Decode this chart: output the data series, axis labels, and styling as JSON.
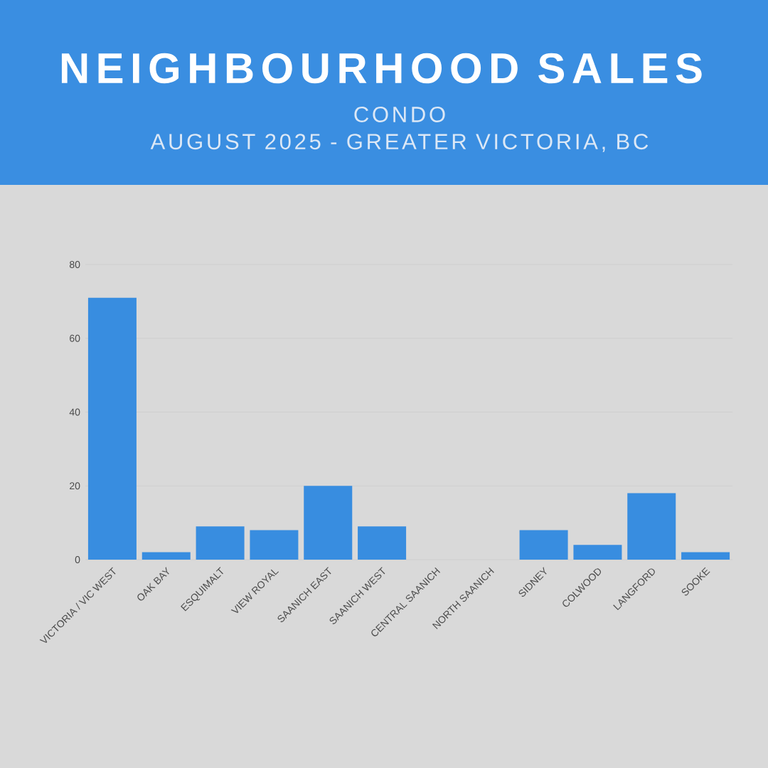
{
  "chart_data": {
    "type": "bar",
    "title": "NEIGHBOURHOOD SALES",
    "subtitle": "CONDO",
    "annotations": [
      "AUGUST 2025 - GREATER VICTORIA, BC"
    ],
    "categories": [
      "VICTORIA / VIC WEST",
      "OAK BAY",
      "ESQUIMALT",
      "VIEW ROYAL",
      "SAANICH EAST",
      "SAANICH WEST",
      "CENTRAL SAANICH",
      "NORTH SAANICH",
      "SIDNEY",
      "COLWOOD",
      "LANGFORD",
      "SOOKE"
    ],
    "values": [
      71,
      2,
      9,
      8,
      20,
      9,
      0,
      0,
      8,
      4,
      18,
      2
    ],
    "color": "#388de0",
    "ylim": [
      0,
      80
    ],
    "yticks": [
      0,
      20,
      40,
      60,
      80
    ],
    "grid": "y"
  }
}
